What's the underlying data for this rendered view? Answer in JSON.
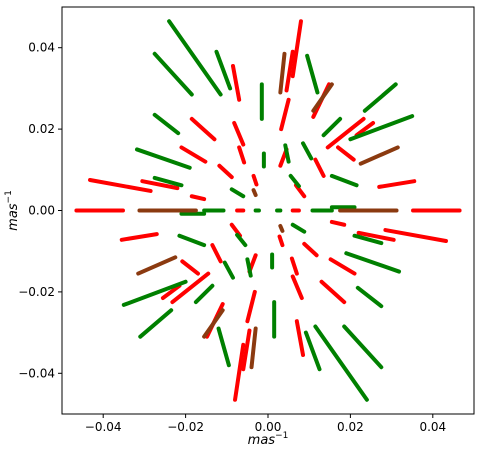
{
  "chart_data": {
    "type": "line",
    "title": "",
    "xlabel": "mas",
    "xlabel_sup": "−1",
    "ylabel": "mas",
    "ylabel_sup": "−1",
    "xlim": [
      -0.05,
      0.05
    ],
    "ylim": [
      -0.05,
      0.05
    ],
    "xticks": [
      -0.04,
      -0.02,
      0.0,
      0.02,
      0.04
    ],
    "xtick_labels": [
      "−0.04",
      "−0.02",
      "0.00",
      "0.02",
      "0.04"
    ],
    "yticks": [
      -0.04,
      -0.02,
      0.0,
      0.02,
      0.04
    ],
    "ytick_labels": [
      "−0.04",
      "−0.02",
      "0.00",
      "0.02",
      "0.04"
    ],
    "grid": false,
    "legend": "none",
    "colors": {
      "red": "#ff0000",
      "green": "#008000",
      "brown": "#8b3a10"
    },
    "series": [
      {
        "color": "red",
        "segments": [
          {
            "x": [
              -0.0465,
              -0.0352
            ],
            "y": [
              0.0,
              0.0
            ]
          },
          {
            "x": [
              -0.0265,
              -0.0195
            ],
            "y": [
              0.0,
              0.0
            ]
          },
          {
            "x": [
              -0.0075,
              -0.006
            ],
            "y": [
              0.0,
              0.0
            ]
          },
          {
            "x": [
              0.006,
              0.0075
            ],
            "y": [
              0.0,
              0.0
            ]
          },
          {
            "x": [
              0.0195,
              0.0235
            ],
            "y": [
              0.0,
              0.0
            ]
          },
          {
            "x": [
              0.0352,
              0.0465
            ],
            "y": [
              0.0,
              0.0
            ]
          },
          {
            "x": [
              -0.0432,
              -0.0285
            ],
            "y": [
              0.0075,
              0.0048
            ]
          },
          {
            "x": [
              -0.0305,
              -0.022
            ],
            "y": [
              0.0072,
              0.0055
            ]
          },
          {
            "x": [
              -0.0185,
              -0.0155
            ],
            "y": [
              0.0035,
              0.0028
            ]
          },
          {
            "x": [
              0.0155,
              0.0185
            ],
            "y": [
              -0.0028,
              -0.0035
            ]
          },
          {
            "x": [
              0.022,
              0.0305
            ],
            "y": [
              -0.0055,
              -0.0072
            ]
          },
          {
            "x": [
              0.0285,
              0.0432
            ],
            "y": [
              -0.0048,
              -0.0075
            ]
          },
          {
            "x": [
              -0.021,
              -0.0152
            ],
            "y": [
              0.0155,
              0.012
            ]
          },
          {
            "x": [
              -0.0185,
              -0.013
            ],
            "y": [
              0.0225,
              0.0175
            ]
          },
          {
            "x": [
              -0.0118,
              -0.0088
            ],
            "y": [
              0.011,
              0.0082
            ]
          },
          {
            "x": [
              -0.0082,
              -0.006
            ],
            "y": [
              0.0215,
              0.0162
            ]
          },
          {
            "x": [
              0.006,
              0.0082
            ],
            "y": [
              -0.0162,
              -0.0215
            ]
          },
          {
            "x": [
              0.0088,
              0.0118
            ],
            "y": [
              -0.0082,
              -0.011
            ]
          },
          {
            "x": [
              0.013,
              0.0185
            ],
            "y": [
              -0.0175,
              -0.0225
            ]
          },
          {
            "x": [
              0.0152,
              0.021
            ],
            "y": [
              -0.012,
              -0.0155
            ]
          },
          {
            "x": [
              -0.0085,
              -0.007
            ],
            "y": [
              0.0355,
              0.0272
            ]
          },
          {
            "x": [
              -0.007,
              -0.0058
            ],
            "y": [
              0.0155,
              0.0118
            ]
          },
          {
            "x": [
              -0.0035,
              -0.0028
            ],
            "y": [
              0.0085,
              0.0064
            ]
          },
          {
            "x": [
              0.0028,
              0.0035
            ],
            "y": [
              -0.0064,
              -0.0085
            ]
          },
          {
            "x": [
              0.0058,
              0.007
            ],
            "y": [
              -0.0118,
              -0.0155
            ]
          },
          {
            "x": [
              0.007,
              0.0085
            ],
            "y": [
              -0.0272,
              -0.0355
            ]
          },
          {
            "x": [
              -0.0135,
              -0.0115
            ],
            "y": [
              -0.0085,
              -0.0125
            ]
          },
          {
            "x": [
              -0.0088,
              -0.0068
            ],
            "y": [
              -0.0035,
              -0.0062
            ]
          },
          {
            "x": [
              -0.0208,
              -0.017
            ],
            "y": [
              -0.0125,
              -0.0155
            ]
          },
          {
            "x": [
              -0.0232,
              -0.0145
            ],
            "y": [
              -0.0225,
              -0.0155
            ]
          },
          {
            "x": [
              0.0115,
              0.0135
            ],
            "y": [
              0.0125,
              0.0085
            ]
          },
          {
            "x": [
              0.0068,
              0.0088
            ],
            "y": [
              0.0062,
              0.0035
            ]
          },
          {
            "x": [
              0.017,
              0.0208
            ],
            "y": [
              0.0155,
              0.0125
            ]
          },
          {
            "x": [
              0.0145,
              0.0232
            ],
            "y": [
              0.0155,
              0.0225
            ]
          },
          {
            "x": [
              -0.0355,
              -0.027
            ],
            "y": [
              -0.0072,
              -0.0058
            ]
          },
          {
            "x": [
              0.027,
              0.0355
            ],
            "y": [
              0.0058,
              0.0072
            ]
          },
          {
            "x": [
              -0.0255,
              -0.0215
            ],
            "y": [
              -0.0215,
              -0.0185
            ]
          },
          {
            "x": [
              0.0215,
              0.0255
            ],
            "y": [
              0.0185,
              0.0215
            ]
          },
          {
            "x": [
              -0.005,
              -0.0032
            ],
            "y": [
              -0.0272,
              -0.02
            ]
          },
          {
            "x": [
              -0.008,
              -0.006
            ],
            "y": [
              -0.0465,
              -0.033
            ]
          },
          {
            "x": [
              -0.006,
              -0.0045
            ],
            "y": [
              -0.039,
              -0.0295
            ]
          },
          {
            "x": [
              -0.0148,
              -0.011
            ],
            "y": [
              -0.031,
              -0.023
            ]
          },
          {
            "x": [
              0.0032,
              0.005
            ],
            "y": [
              0.02,
              0.0272
            ]
          },
          {
            "x": [
              0.006,
              0.008
            ],
            "y": [
              0.033,
              0.0465
            ]
          },
          {
            "x": [
              0.0045,
              0.006
            ],
            "y": [
              0.0295,
              0.039
            ]
          },
          {
            "x": [
              0.011,
              0.0148
            ],
            "y": [
              0.023,
              0.031
            ]
          },
          {
            "x": [
              -0.0045,
              -0.003
            ],
            "y": [
              -0.015,
              -0.011
            ]
          },
          {
            "x": [
              0.003,
              0.0045
            ],
            "y": [
              0.011,
              0.015
            ]
          }
        ]
      },
      {
        "color": "green",
        "segments": [
          {
            "x": [
              -0.0155,
              -0.0108
            ],
            "y": [
              0.0,
              0.0
            ]
          },
          {
            "x": [
              -0.003,
              -0.0022
            ],
            "y": [
              0.0,
              0.0
            ]
          },
          {
            "x": [
              0.0022,
              0.003
            ],
            "y": [
              0.0,
              0.0
            ]
          },
          {
            "x": [
              0.0108,
              0.0155
            ],
            "y": [
              0.0,
              0.0
            ]
          },
          {
            "x": [
              -0.0318,
              -0.019
            ],
            "y": [
              0.015,
              0.0105
            ]
          },
          {
            "x": [
              -0.0275,
              -0.021
            ],
            "y": [
              0.008,
              0.0062
            ]
          },
          {
            "x": [
              0.021,
              0.0275
            ],
            "y": [
              -0.0062,
              -0.008
            ]
          },
          {
            "x": [
              0.019,
              0.0318
            ],
            "y": [
              -0.0105,
              -0.015
            ]
          },
          {
            "x": [
              -0.0275,
              -0.0185
            ],
            "y": [
              0.0385,
              0.0285
            ]
          },
          {
            "x": [
              -0.024,
              -0.0115
            ],
            "y": [
              0.0465,
              0.0285
            ]
          },
          {
            "x": [
              -0.0275,
              -0.0218
            ],
            "y": [
              0.0235,
              0.019
            ]
          },
          {
            "x": [
              0.0218,
              0.0275
            ],
            "y": [
              -0.019,
              -0.0235
            ]
          },
          {
            "x": [
              0.0115,
              0.024
            ],
            "y": [
              -0.0285,
              -0.0465
            ]
          },
          {
            "x": [
              0.0185,
              0.0275
            ],
            "y": [
              -0.0285,
              -0.0385
            ]
          },
          {
            "x": [
              -0.0125,
              -0.0092
            ],
            "y": [
              0.039,
              0.03
            ]
          },
          {
            "x": [
              -0.0015,
              -0.0015
            ],
            "y": [
              0.031,
              0.0225
            ]
          },
          {
            "x": [
              -0.001,
              -0.001
            ],
            "y": [
              0.014,
              0.0108
            ]
          },
          {
            "x": [
              -0.0088,
              -0.006
            ],
            "y": [
              0.0052,
              0.0035
            ]
          },
          {
            "x": [
              0.006,
              0.0088
            ],
            "y": [
              -0.0035,
              -0.0052
            ]
          },
          {
            "x": [
              0.001,
              0.001
            ],
            "y": [
              -0.0108,
              -0.014
            ]
          },
          {
            "x": [
              0.0015,
              0.0015
            ],
            "y": [
              -0.0225,
              -0.031
            ]
          },
          {
            "x": [
              0.0092,
              0.0125
            ],
            "y": [
              -0.03,
              -0.039
            ]
          },
          {
            "x": [
              0.0095,
              0.012
            ],
            "y": [
              0.038,
              0.029
            ]
          },
          {
            "x": [
              0.0042,
              0.005
            ],
            "y": [
              0.016,
              0.012
            ]
          },
          {
            "x": [
              0.0055,
              0.0075
            ],
            "y": [
              0.0085,
              0.006
            ]
          },
          {
            "x": [
              0.0085,
              0.0105
            ],
            "y": [
              0.0165,
              0.0128
            ]
          },
          {
            "x": [
              0.0155,
              0.0215
            ],
            "y": [
              0.0085,
              0.0062
            ]
          },
          {
            "x": [
              0.02,
              0.035
            ],
            "y": [
              0.0175,
              0.0232
            ]
          },
          {
            "x": [
              0.0235,
              0.031
            ],
            "y": [
              0.0245,
              0.031
            ]
          },
          {
            "x": [
              0.0135,
              0.0175
            ],
            "y": [
              0.0185,
              0.0225
            ]
          },
          {
            "x": [
              -0.012,
              -0.0095
            ],
            "y": [
              -0.029,
              -0.038
            ]
          },
          {
            "x": [
              -0.005,
              -0.0042
            ],
            "y": [
              -0.012,
              -0.016
            ]
          },
          {
            "x": [
              -0.0075,
              -0.0055
            ],
            "y": [
              -0.006,
              -0.0085
            ]
          },
          {
            "x": [
              -0.0105,
              -0.0085
            ],
            "y": [
              -0.0128,
              -0.0165
            ]
          },
          {
            "x": [
              -0.0215,
              -0.0155
            ],
            "y": [
              -0.0062,
              -0.0085
            ]
          },
          {
            "x": [
              -0.035,
              -0.02
            ],
            "y": [
              -0.0232,
              -0.0175
            ]
          },
          {
            "x": [
              -0.031,
              -0.0235
            ],
            "y": [
              -0.031,
              -0.0245
            ]
          },
          {
            "x": [
              -0.0175,
              -0.0135
            ],
            "y": [
              -0.0225,
              -0.0185
            ]
          },
          {
            "x": [
              0.0155,
              0.021
            ],
            "y": [
              0.0008,
              0.0008
            ]
          },
          {
            "x": [
              -0.021,
              -0.0155
            ],
            "y": [
              -0.0008,
              -0.0008
            ]
          }
        ]
      },
      {
        "color": "brown",
        "segments": [
          {
            "x": [
              -0.0312,
              -0.0175
            ],
            "y": [
              0.0,
              0.0
            ]
          },
          {
            "x": [
              0.0175,
              0.0312
            ],
            "y": [
              0.0,
              0.0
            ]
          },
          {
            "x": [
              0.0225,
              0.0315
            ],
            "y": [
              0.0115,
              0.0155
            ]
          },
          {
            "x": [
              -0.0315,
              -0.0225
            ],
            "y": [
              -0.0155,
              -0.0115
            ]
          },
          {
            "x": [
              0.011,
              0.0155
            ],
            "y": [
              0.0245,
              0.031
            ]
          },
          {
            "x": [
              -0.0155,
              -0.011
            ],
            "y": [
              -0.031,
              -0.0245
            ]
          },
          {
            "x": [
              0.003,
              0.004
            ],
            "y": [
              0.029,
              0.0385
            ]
          },
          {
            "x": [
              -0.004,
              -0.003
            ],
            "y": [
              -0.0385,
              -0.029
            ]
          },
          {
            "x": [
              -0.0035,
              -0.003
            ],
            "y": [
              0.005,
              0.0038
            ]
          },
          {
            "x": [
              0.003,
              0.0035
            ],
            "y": [
              -0.0038,
              -0.005
            ]
          }
        ]
      }
    ]
  }
}
